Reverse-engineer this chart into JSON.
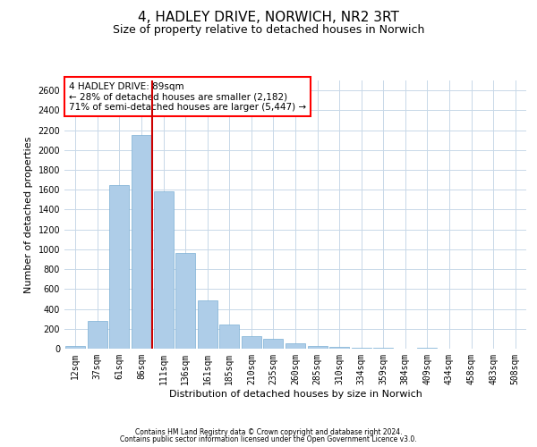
{
  "title": "4, HADLEY DRIVE, NORWICH, NR2 3RT",
  "subtitle": "Size of property relative to detached houses in Norwich",
  "xlabel": "Distribution of detached houses by size in Norwich",
  "ylabel": "Number of detached properties",
  "footer1": "Contains HM Land Registry data © Crown copyright and database right 2024.",
  "footer2": "Contains public sector information licensed under the Open Government Licence v3.0.",
  "annotation_line1": "4 HADLEY DRIVE: 89sqm",
  "annotation_line2": "← 28% of detached houses are smaller (2,182)",
  "annotation_line3": "71% of semi-detached houses are larger (5,447) →",
  "bar_color": "#aecde8",
  "bar_edge_color": "#7bafd4",
  "highlight_line_color": "#cc0000",
  "highlight_bar_index": 3,
  "categories": [
    "12sqm",
    "37sqm",
    "61sqm",
    "86sqm",
    "111sqm",
    "136sqm",
    "161sqm",
    "185sqm",
    "210sqm",
    "235sqm",
    "260sqm",
    "285sqm",
    "310sqm",
    "334sqm",
    "359sqm",
    "384sqm",
    "409sqm",
    "434sqm",
    "458sqm",
    "483sqm",
    "508sqm"
  ],
  "values": [
    30,
    280,
    1650,
    2150,
    1580,
    960,
    490,
    240,
    125,
    95,
    50,
    30,
    15,
    10,
    5,
    2,
    10,
    1,
    1,
    1,
    2
  ],
  "ylim": [
    0,
    2700
  ],
  "yticks": [
    0,
    200,
    400,
    600,
    800,
    1000,
    1200,
    1400,
    1600,
    1800,
    2000,
    2200,
    2400,
    2600
  ],
  "background_color": "#ffffff",
  "grid_color": "#c8d8e8",
  "title_fontsize": 11,
  "subtitle_fontsize": 9,
  "xlabel_fontsize": 8,
  "ylabel_fontsize": 8,
  "annotation_fontsize": 7.5,
  "tick_fontsize": 7,
  "footer_fontsize": 5.5
}
